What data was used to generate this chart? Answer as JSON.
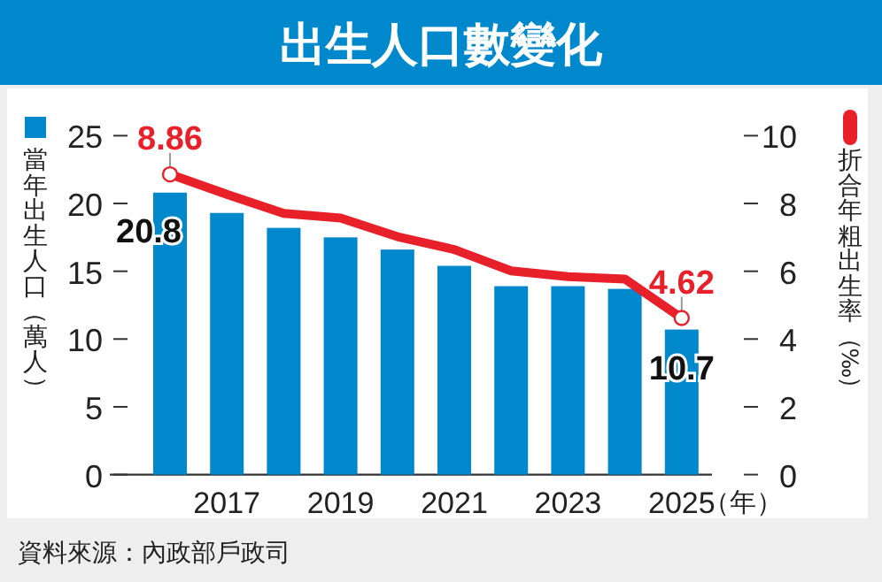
{
  "chart_data": {
    "type": "bar",
    "title": "出生人口數變化",
    "categories": [
      null,
      "2017",
      null,
      "2019",
      null,
      "2021",
      null,
      "2023",
      null,
      "2025"
    ],
    "xlabel": "（年）",
    "ylabel": "當年出生人口（萬人）",
    "y2label": "折合年粗出生率（‰）",
    "series": [
      {
        "color": "#0088cc",
        "values": [
          20.8,
          19.3,
          18.2,
          17.5,
          16.6,
          15.4,
          13.9,
          13.9,
          13.7,
          10.7
        ],
        "value_labels": [
          "20.8",
          null,
          null,
          null,
          null,
          null,
          null,
          null,
          null,
          "10.7"
        ]
      },
      {
        "type": "line",
        "axis": "y2",
        "color": "#e8202a",
        "values": [
          8.86,
          8.27,
          7.71,
          7.57,
          7.02,
          6.64,
          6.01,
          5.84,
          5.77,
          4.62
        ],
        "value_labels": [
          "8.86",
          null,
          null,
          null,
          null,
          null,
          null,
          null,
          null,
          "4.62"
        ]
      }
    ],
    "ylim": [
      0,
      25
    ],
    "yticks": [
      0,
      5,
      10,
      15,
      20,
      25
    ],
    "y2lim": [
      0,
      10
    ],
    "y2ticks": [
      0,
      2,
      4,
      6,
      8,
      10
    ],
    "annotations": [
      "資料來源：內政部戶政司"
    ]
  }
}
